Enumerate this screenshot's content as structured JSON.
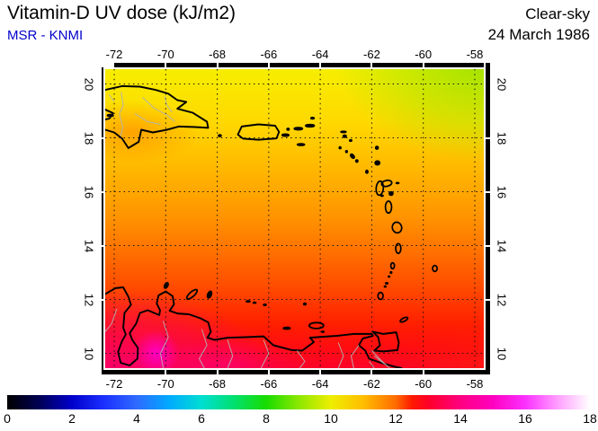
{
  "header": {
    "title": "Vitamin-D UV dose (kJ/m2)",
    "source": "MSR - KNMI",
    "source_color": "#0000cc",
    "condition": "Clear-sky",
    "date": "24 March 1986"
  },
  "colorbar": {
    "min": 0,
    "max": 18,
    "ticks": [
      0,
      2,
      4,
      6,
      8,
      10,
      12,
      14,
      16,
      18
    ],
    "stops": [
      [
        0,
        "#000000"
      ],
      [
        1,
        "#000055"
      ],
      [
        2,
        "#0000cc"
      ],
      [
        3,
        "#1c30ff"
      ],
      [
        4,
        "#2e6aff"
      ],
      [
        5,
        "#00aaff"
      ],
      [
        6,
        "#00ded2"
      ],
      [
        7,
        "#00e070"
      ],
      [
        8,
        "#18dc00"
      ],
      [
        9,
        "#8ce800"
      ],
      [
        10,
        "#eeee00"
      ],
      [
        11,
        "#ffbe00"
      ],
      [
        12,
        "#ff6c00"
      ],
      [
        12.5,
        "#ff1a00"
      ],
      [
        13,
        "#ff0028"
      ],
      [
        14,
        "#ff0080"
      ],
      [
        15,
        "#ff00c0"
      ],
      [
        16,
        "#fb30ff"
      ],
      [
        17,
        "#ff9eff"
      ],
      [
        18,
        "#ffffff"
      ]
    ]
  },
  "chart_data": {
    "type": "heatmap",
    "title": "Vitamin-D UV dose (kJ/m2)",
    "subtitle": "MSR - KNMI",
    "condition": "Clear-sky",
    "date": "24 March 1986",
    "units": "kJ/m2",
    "region": "Caribbean: Hispaniola, Puerto Rico, Lesser Antilles, Venezuelan coast",
    "lon_range": [
      -72.35,
      -57.65
    ],
    "lat_range": [
      9.45,
      20.55
    ],
    "grid_lons": [
      -72,
      -70,
      -68,
      -66,
      -64,
      -62,
      -60,
      -58
    ],
    "grid_lats": [
      20,
      18,
      16,
      14,
      12,
      10
    ],
    "grid": "dotted, 2-degree spacing",
    "colorbar": {
      "min": 0,
      "max": 18,
      "ticks": [
        0,
        2,
        4,
        6,
        8,
        10,
        12,
        14,
        16,
        18
      ],
      "palette": "rainbow: black-blue-cyan-green-yellow-orange-red-magenta-white"
    },
    "values_by_lat": {
      "20": [
        10.3,
        10.2,
        10.1,
        10.0,
        9.9,
        9.8,
        9.6,
        9.4
      ],
      "18": [
        10.9,
        10.8,
        10.6,
        10.5,
        10.4,
        10.3,
        10.2,
        10.1
      ],
      "16": [
        11.5,
        11.4,
        11.2,
        11.1,
        11.0,
        10.9,
        10.8,
        10.7
      ],
      "14": [
        12.2,
        12.1,
        11.9,
        11.8,
        11.7,
        11.6,
        11.5,
        11.4
      ],
      "12": [
        13.0,
        12.9,
        12.7,
        12.6,
        12.5,
        12.4,
        12.3,
        12.2
      ],
      "10": [
        14.2,
        14.4,
        13.8,
        13.5,
        13.2,
        13.0,
        12.9,
        12.8
      ]
    },
    "notes": "Dose increases from ~9.5 kJ/m2 (yellow-green, NE corner) to ~14+ kJ/m2 (magenta, SW over Venezuela); coastlines drawn in black, rivers/borders in gray."
  }
}
